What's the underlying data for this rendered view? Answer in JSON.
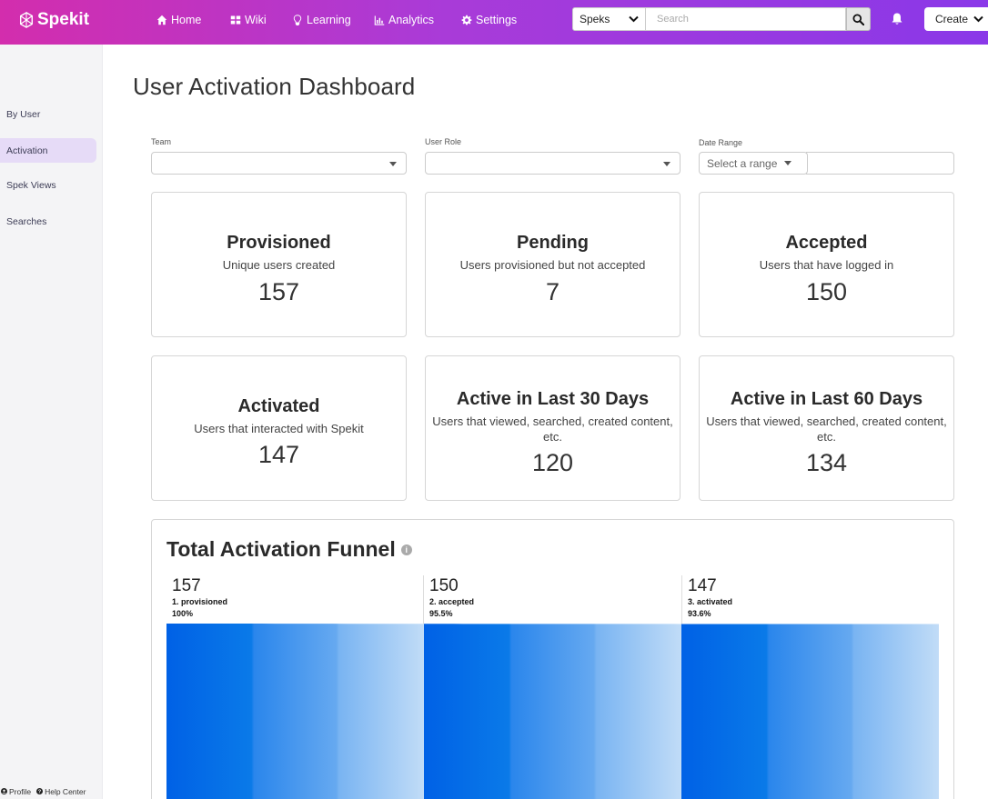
{
  "app": {
    "name": "Spekit"
  },
  "nav": [
    {
      "label": "Home",
      "icon": "home-icon"
    },
    {
      "label": "Wiki",
      "icon": "grid-icon"
    },
    {
      "label": "Learning",
      "icon": "lightbulb-icon"
    },
    {
      "label": "Analytics",
      "icon": "bar-chart-icon"
    },
    {
      "label": "Settings",
      "icon": "gear-icon"
    }
  ],
  "search": {
    "scope": "Speks",
    "placeholder": "Search"
  },
  "create": {
    "label": "Create"
  },
  "sidebar": {
    "items": [
      {
        "label": "By User",
        "active": false
      },
      {
        "label": "Activation",
        "active": true
      },
      {
        "label": "Spek Views",
        "active": false
      },
      {
        "label": "Searches",
        "active": false
      }
    ],
    "footer": {
      "profile": "Profile",
      "help": "Help Center"
    }
  },
  "page": {
    "title": "User Activation Dashboard"
  },
  "filters": {
    "team": {
      "label": "Team",
      "value": ""
    },
    "role": {
      "label": "User Role",
      "value": ""
    },
    "date": {
      "label": "Date Range",
      "placeholder": "Select a range"
    }
  },
  "cards": [
    {
      "title": "Provisioned",
      "subtitle": "Unique users created",
      "value": "157"
    },
    {
      "title": "Pending",
      "subtitle": "Users provisioned but not accepted",
      "value": "7"
    },
    {
      "title": "Accepted",
      "subtitle": "Users that have logged in",
      "value": "150"
    },
    {
      "title": "Activated",
      "subtitle": "Users that interacted with Spekit",
      "value": "147"
    },
    {
      "title": "Active in Last 30 Days",
      "subtitle": "Users that viewed, searched, created content, etc.",
      "value": "120"
    },
    {
      "title": "Active in Last 60 Days",
      "subtitle": "Users that viewed, searched, created content, etc.",
      "value": "134"
    }
  ],
  "funnel": {
    "title": "Total Activation Funnel"
  },
  "chart_data": {
    "type": "bar",
    "title": "Total Activation Funnel",
    "categories": [
      "1. provisioned",
      "2. accepted",
      "3. activated"
    ],
    "values": [
      157,
      150,
      147
    ],
    "percents": [
      "100%",
      "95.5%",
      "93.6%"
    ],
    "colors": [
      "#0061e6",
      "#3a8ff0",
      "#bcdaf7"
    ]
  }
}
